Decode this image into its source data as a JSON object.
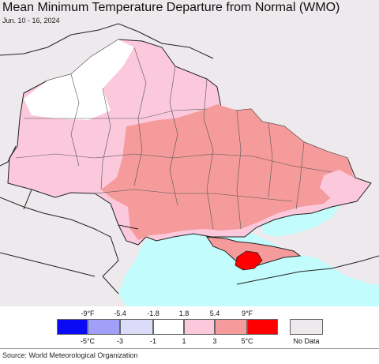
{
  "title": "Mean Minimum Temperature Departure from Normal (WMO)",
  "date_range": "Jun. 10 - 16, 2024",
  "legend": {
    "fahrenheit_ticks": [
      "-9°F",
      "-5.4",
      "-1.8",
      "1.8",
      "5.4",
      "9°F"
    ],
    "celsius_ticks": [
      "-5°C",
      "-3",
      "-1",
      "1",
      "3",
      "5°C"
    ],
    "bins": [
      {
        "color": "#0a0af5"
      },
      {
        "color": "#a0a0f8"
      },
      {
        "color": "#dcdcf8"
      },
      {
        "color": "#ffffff"
      },
      {
        "color": "#fbc8dc"
      },
      {
        "color": "#f59b9b"
      },
      {
        "color": "#ff0000"
      }
    ],
    "no_data_label": "No Data",
    "no_data_color": "#ede9ec"
  },
  "source": "Source: World Meteorological Organization",
  "colors": {
    "sea": "#c2fcfc",
    "outside": "#ede9ec",
    "white_anomaly": "#ffffff",
    "pink_anomaly": "#fbc8dc",
    "salmon_anomaly": "#f59b9b",
    "red_anomaly": "#ff0000"
  }
}
